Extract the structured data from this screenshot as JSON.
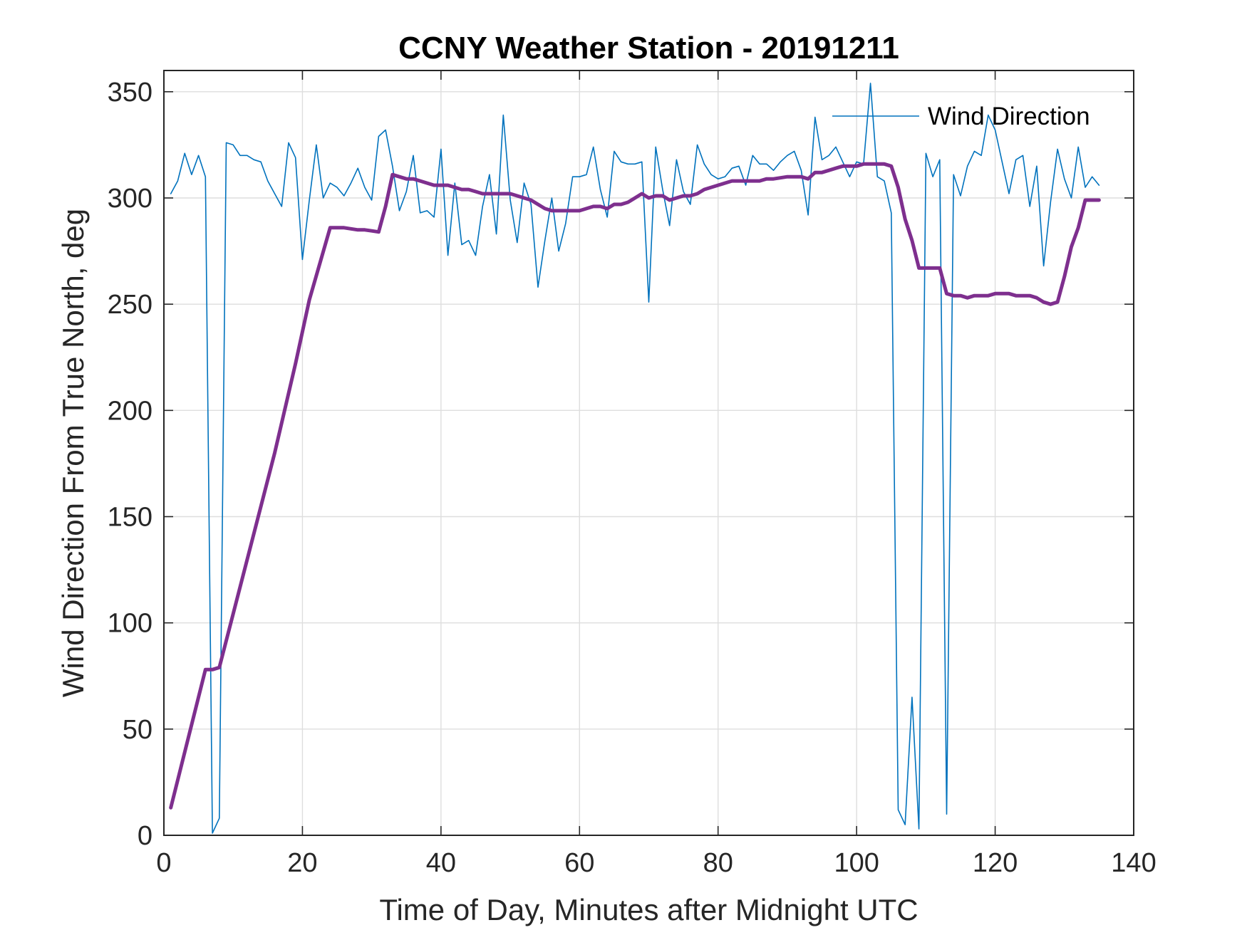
{
  "chart_data": {
    "type": "line",
    "title": "CCNY Weather Station - 20191211",
    "xlabel": "Time of Day, Minutes after Midnight UTC",
    "ylabel": "Wind Direction From True North, deg",
    "xlim": [
      0,
      140
    ],
    "ylim": [
      0,
      360
    ],
    "xticks": [
      0,
      20,
      40,
      60,
      80,
      100,
      120,
      140
    ],
    "yticks": [
      0,
      50,
      100,
      150,
      200,
      250,
      300,
      350
    ],
    "xtick_labels": [
      "0",
      "20",
      "40",
      "60",
      "80",
      "100",
      "120",
      "140"
    ],
    "ytick_labels": [
      "0",
      "50",
      "100",
      "150",
      "200",
      "250",
      "300",
      "350"
    ],
    "grid": true,
    "legend": {
      "location": "top-right",
      "entries": [
        "Wind Direction"
      ]
    },
    "series": [
      {
        "name": "Wind Direction",
        "color": "#0072BD",
        "style": "thin",
        "x": [
          1,
          2,
          3,
          4,
          5,
          6,
          7,
          8,
          9,
          10,
          11,
          12,
          13,
          14,
          15,
          16,
          17,
          18,
          19,
          20,
          21,
          22,
          23,
          24,
          25,
          26,
          27,
          28,
          29,
          30,
          31,
          32,
          33,
          34,
          35,
          36,
          37,
          38,
          39,
          40,
          41,
          42,
          43,
          44,
          45,
          46,
          47,
          48,
          49,
          50,
          51,
          52,
          53,
          54,
          55,
          56,
          57,
          58,
          59,
          60,
          61,
          62,
          63,
          64,
          65,
          66,
          67,
          68,
          69,
          70,
          71,
          72,
          73,
          74,
          75,
          76,
          77,
          78,
          79,
          80,
          81,
          82,
          83,
          84,
          85,
          86,
          87,
          88,
          89,
          90,
          91,
          92,
          93,
          94,
          95,
          96,
          97,
          98,
          99,
          100,
          101,
          102,
          103,
          104,
          105,
          106,
          107,
          108,
          109,
          110,
          111,
          112,
          113,
          114,
          115,
          116,
          117,
          118,
          119,
          120,
          121,
          122,
          123,
          124,
          125,
          126,
          127,
          128,
          129,
          130,
          131,
          132,
          133,
          134,
          135
        ],
        "y": [
          302,
          308,
          321,
          311,
          320,
          310,
          1,
          8,
          326,
          325,
          320,
          320,
          318,
          317,
          308,
          302,
          296,
          326,
          319,
          271,
          299,
          325,
          300,
          307,
          305,
          301,
          307,
          314,
          305,
          299,
          329,
          332,
          315,
          294,
          303,
          320,
          293,
          294,
          291,
          323,
          273,
          307,
          278,
          280,
          273,
          296,
          311,
          283,
          339,
          299,
          279,
          307,
          297,
          258,
          280,
          300,
          275,
          288,
          310,
          310,
          311,
          324,
          304,
          291,
          322,
          317,
          316,
          316,
          317,
          251,
          324,
          304,
          287,
          318,
          303,
          297,
          325,
          316,
          311,
          309,
          310,
          314,
          315,
          306,
          320,
          316,
          316,
          313,
          317,
          320,
          322,
          313,
          292,
          338,
          318,
          320,
          324,
          317,
          310,
          317,
          316,
          354,
          310,
          308,
          293,
          12,
          5,
          65,
          3,
          321,
          310,
          318,
          10,
          311,
          301,
          315,
          322,
          320,
          339,
          332,
          317,
          302,
          318,
          320,
          296,
          315,
          268,
          298,
          323,
          309,
          300,
          324,
          305,
          310,
          306
        ]
      },
      {
        "name": "",
        "color": "#7E2F8E",
        "style": "thick",
        "x": [
          1,
          6,
          7,
          8,
          16,
          19,
          21,
          24,
          25,
          26,
          27,
          28,
          29,
          30,
          31,
          32,
          33,
          34,
          35,
          36,
          37,
          38,
          39,
          40,
          41,
          42,
          43,
          44,
          45,
          46,
          47,
          48,
          49,
          50,
          51,
          52,
          53,
          54,
          55,
          56,
          57,
          58,
          59,
          60,
          61,
          62,
          63,
          64,
          65,
          66,
          67,
          68,
          69,
          70,
          71,
          72,
          73,
          74,
          75,
          76,
          77,
          78,
          79,
          80,
          81,
          82,
          83,
          84,
          85,
          86,
          87,
          88,
          89,
          90,
          91,
          92,
          93,
          94,
          95,
          96,
          97,
          98,
          99,
          100,
          101,
          102,
          103,
          104,
          105,
          106,
          107,
          108,
          109,
          110,
          111,
          112,
          113,
          114,
          115,
          116,
          117,
          118,
          119,
          120,
          121,
          122,
          123,
          124,
          125,
          126,
          127,
          128,
          129,
          130,
          131,
          132,
          133,
          134,
          135
        ],
        "y": [
          13,
          78,
          78,
          79,
          180,
          222,
          252,
          286,
          286,
          286,
          285.5,
          285,
          285,
          284.5,
          284,
          296,
          311,
          310,
          309,
          309,
          308,
          307,
          306,
          306,
          306,
          305,
          304,
          304,
          303,
          302,
          302,
          302,
          302,
          302,
          301,
          300,
          299,
          297,
          295,
          294,
          294,
          294,
          294,
          294,
          295,
          296,
          296,
          295,
          297,
          297,
          298,
          300,
          302,
          300,
          301,
          301,
          299,
          300,
          301,
          301,
          302,
          304,
          305,
          306,
          307,
          308,
          308,
          308,
          308,
          308,
          309,
          309,
          309.5,
          310,
          310,
          310,
          309,
          312,
          312,
          313,
          314,
          315,
          315,
          315,
          316,
          316,
          316,
          316,
          315,
          305,
          290,
          280,
          267,
          267,
          267,
          267,
          255,
          254,
          254,
          253,
          254,
          254,
          254,
          255,
          255,
          255,
          254,
          254,
          254,
          253,
          251,
          250,
          251,
          263,
          277,
          286,
          299,
          299,
          299
        ]
      }
    ]
  }
}
